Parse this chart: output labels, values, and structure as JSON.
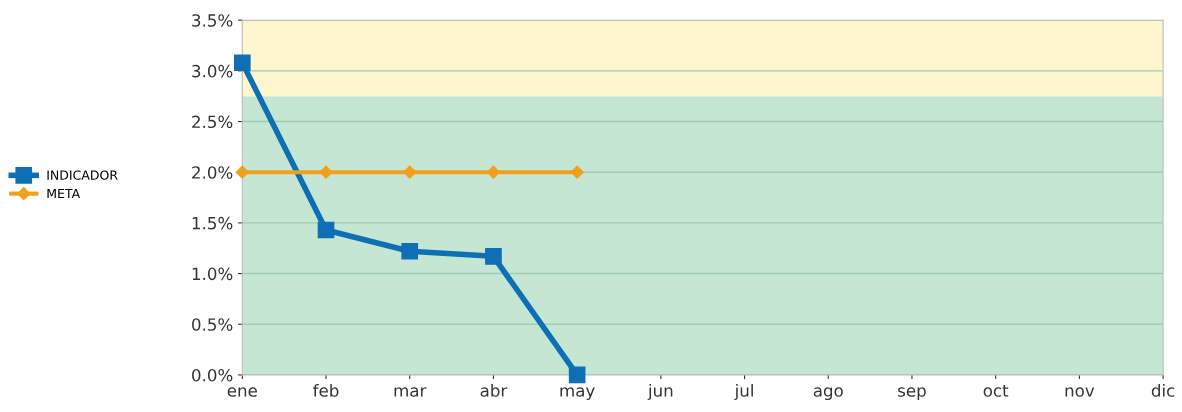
{
  "chart_data": {
    "type": "line",
    "categories": [
      "ene",
      "feb",
      "mar",
      "abr",
      "may",
      "jun",
      "jul",
      "ago",
      "sep",
      "oct",
      "nov",
      "dic"
    ],
    "series": [
      {
        "name": "INDICADOR",
        "color": "#0e6fb5",
        "marker": "square",
        "values": [
          3.08,
          1.43,
          1.22,
          1.17,
          0,
          null,
          null,
          null,
          null,
          null,
          null,
          null
        ]
      },
      {
        "name": "META",
        "color": "#f0a01e",
        "marker": "diamond",
        "values": [
          2.0,
          2.0,
          2.0,
          2.0,
          2.0,
          null,
          null,
          null,
          null,
          null,
          null,
          null
        ]
      }
    ],
    "bands": [
      {
        "axis": "y",
        "from": 0,
        "to": 2.75,
        "color": "#c5e6d2"
      },
      {
        "axis": "y",
        "from": 2.75,
        "to": 3.5,
        "color": "#fdf6cf"
      }
    ],
    "ylim": [
      0,
      3.5
    ],
    "yticks": [
      {
        "value": 0,
        "label": "0.0%"
      },
      {
        "value": 0.5,
        "label": "0.5%"
      },
      {
        "value": 1,
        "label": "1.0%"
      },
      {
        "value": 1.5,
        "label": "1.5%"
      },
      {
        "value": 2,
        "label": "2.0%"
      },
      {
        "value": 2.5,
        "label": "2.5%"
      },
      {
        "value": 3,
        "label": "3.0%"
      },
      {
        "value": 3.5,
        "label": "3.5%"
      }
    ],
    "grid": "y",
    "legend": "left"
  }
}
